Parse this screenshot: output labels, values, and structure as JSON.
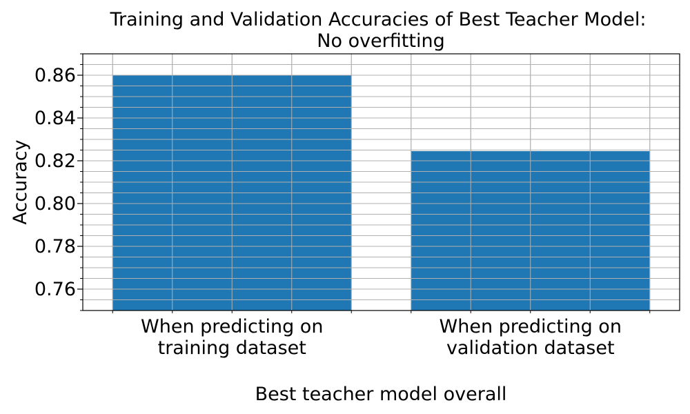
{
  "chart_data": {
    "type": "bar",
    "title_lines": [
      "Training and Validation Accuracies of Best Teacher Model:",
      "No overfitting"
    ],
    "xlabel": "Best teacher model overall",
    "ylabel": "Accuracy",
    "categories": [
      [
        "When predicting on",
        "training dataset"
      ],
      [
        "When predicting on",
        "validation dataset"
      ]
    ],
    "values": [
      0.86,
      0.8245
    ],
    "ylim": [
      0.75,
      0.87
    ],
    "yticks": [
      "0.76",
      "0.78",
      "0.80",
      "0.82",
      "0.84",
      "0.86"
    ],
    "ytick_values": [
      0.76,
      0.78,
      0.8,
      0.82,
      0.84,
      0.86
    ],
    "y_minor_step": 0.005,
    "x_gridlines_per_category": 4,
    "grid": true,
    "legend": "none",
    "bar_color": "#1f77b4",
    "grid_color": "#b0b0b0"
  }
}
